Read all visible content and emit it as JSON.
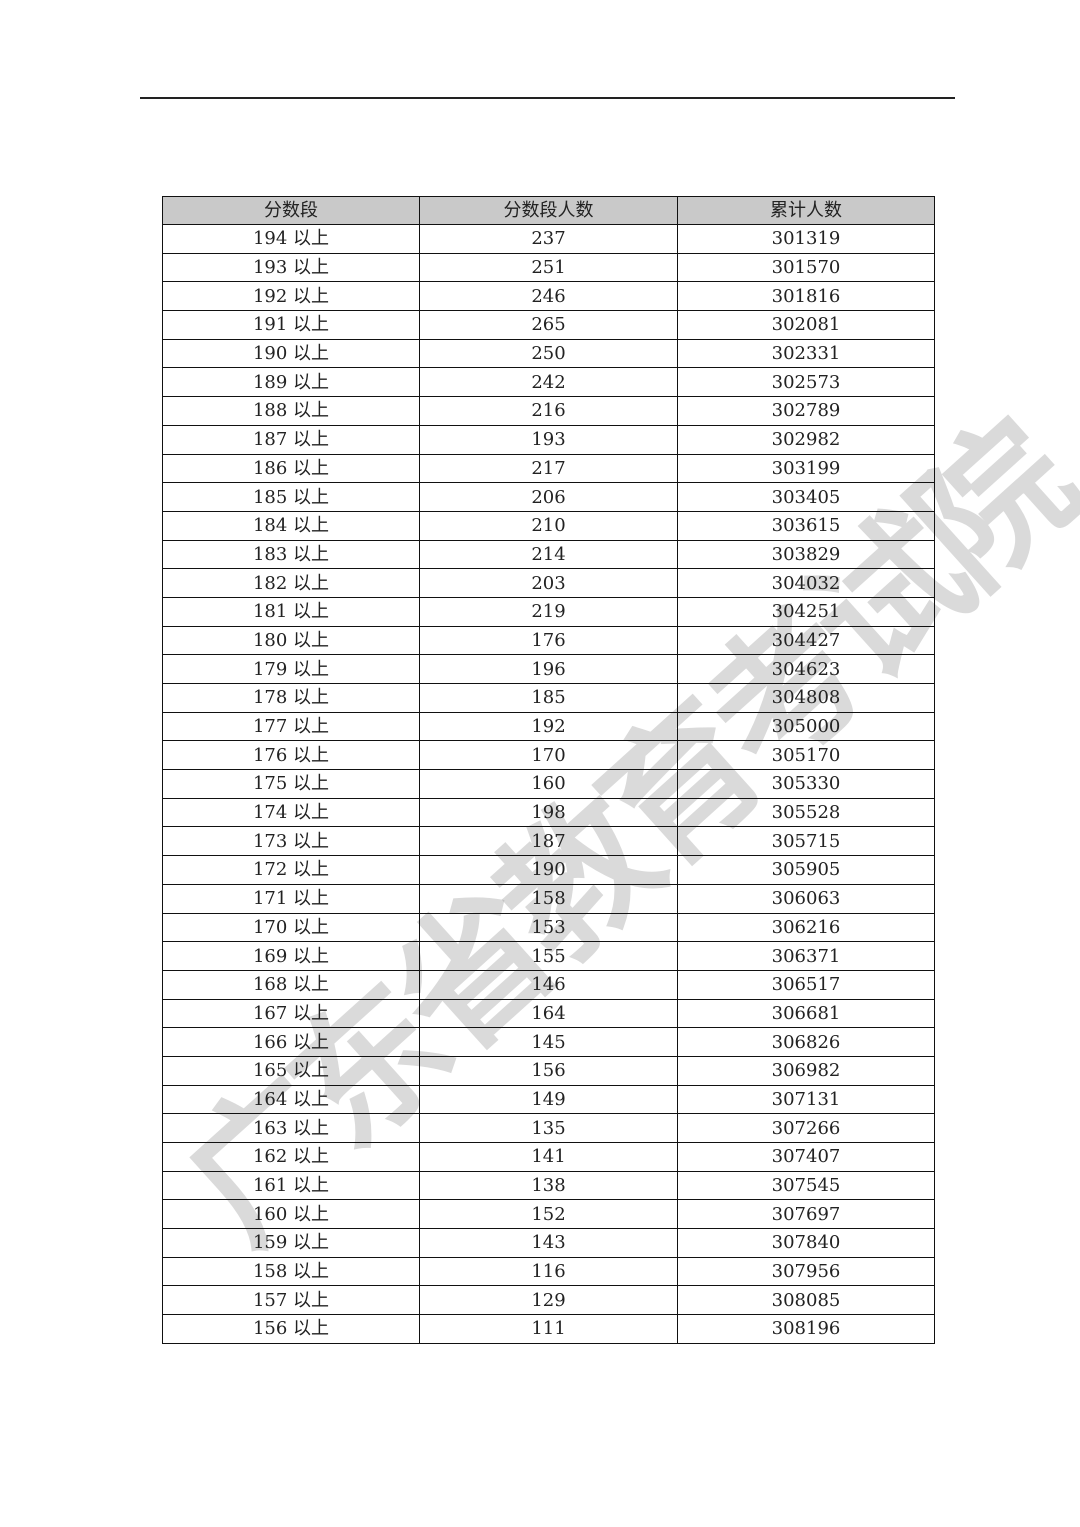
{
  "watermark": "广东省教育考试院",
  "table": {
    "headers": [
      "分数段",
      "分数段人数",
      "累计人数"
    ],
    "rows": [
      [
        "194 以上",
        "237",
        "301319"
      ],
      [
        "193 以上",
        "251",
        "301570"
      ],
      [
        "192 以上",
        "246",
        "301816"
      ],
      [
        "191 以上",
        "265",
        "302081"
      ],
      [
        "190 以上",
        "250",
        "302331"
      ],
      [
        "189 以上",
        "242",
        "302573"
      ],
      [
        "188 以上",
        "216",
        "302789"
      ],
      [
        "187 以上",
        "193",
        "302982"
      ],
      [
        "186 以上",
        "217",
        "303199"
      ],
      [
        "185 以上",
        "206",
        "303405"
      ],
      [
        "184 以上",
        "210",
        "303615"
      ],
      [
        "183 以上",
        "214",
        "303829"
      ],
      [
        "182 以上",
        "203",
        "304032"
      ],
      [
        "181 以上",
        "219",
        "304251"
      ],
      [
        "180 以上",
        "176",
        "304427"
      ],
      [
        "179 以上",
        "196",
        "304623"
      ],
      [
        "178 以上",
        "185",
        "304808"
      ],
      [
        "177 以上",
        "192",
        "305000"
      ],
      [
        "176 以上",
        "170",
        "305170"
      ],
      [
        "175 以上",
        "160",
        "305330"
      ],
      [
        "174 以上",
        "198",
        "305528"
      ],
      [
        "173 以上",
        "187",
        "305715"
      ],
      [
        "172 以上",
        "190",
        "305905"
      ],
      [
        "171 以上",
        "158",
        "306063"
      ],
      [
        "170 以上",
        "153",
        "306216"
      ],
      [
        "169 以上",
        "155",
        "306371"
      ],
      [
        "168 以上",
        "146",
        "306517"
      ],
      [
        "167 以上",
        "164",
        "306681"
      ],
      [
        "166 以上",
        "145",
        "306826"
      ],
      [
        "165 以上",
        "156",
        "306982"
      ],
      [
        "164 以上",
        "149",
        "307131"
      ],
      [
        "163 以上",
        "135",
        "307266"
      ],
      [
        "162 以上",
        "141",
        "307407"
      ],
      [
        "161 以上",
        "138",
        "307545"
      ],
      [
        "160 以上",
        "152",
        "307697"
      ],
      [
        "159 以上",
        "143",
        "307840"
      ],
      [
        "158 以上",
        "116",
        "307956"
      ],
      [
        "157 以上",
        "129",
        "308085"
      ],
      [
        "156 以上",
        "111",
        "308196"
      ]
    ]
  }
}
